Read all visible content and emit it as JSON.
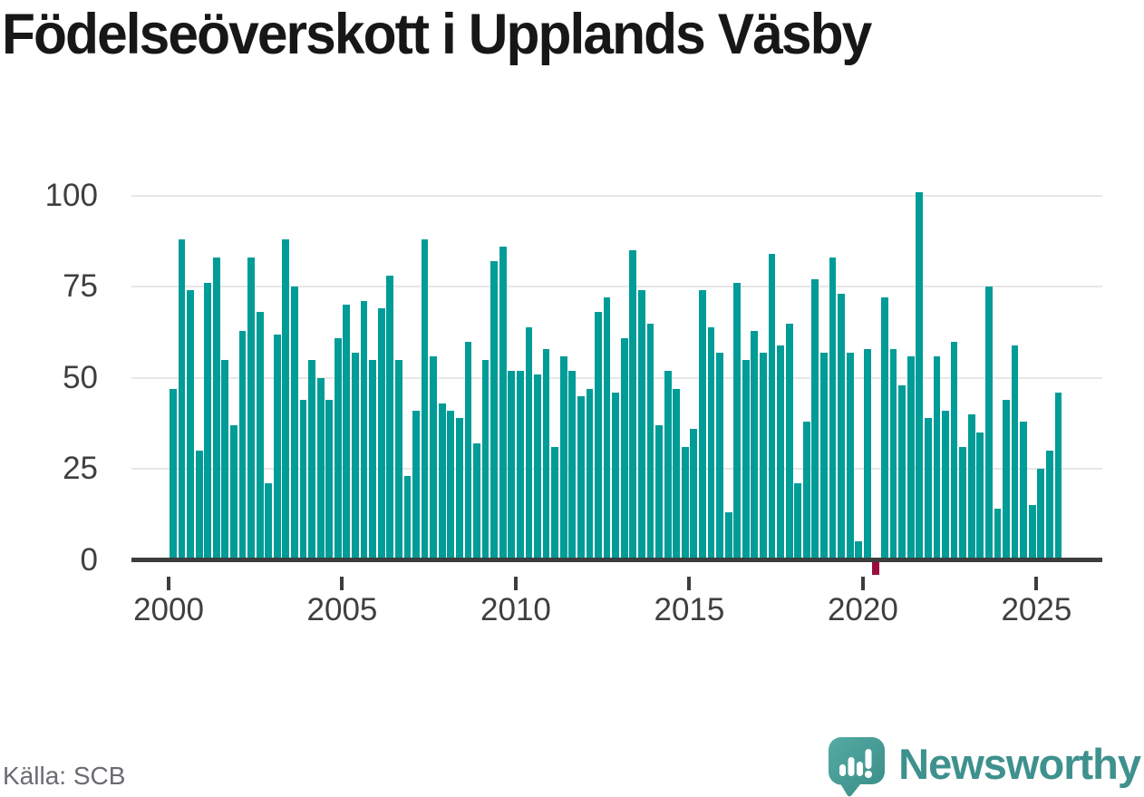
{
  "title": "Födelseöverskott i Upplands Väsby",
  "source": "Källa: SCB",
  "branding": {
    "logo_text": "Newsworthy",
    "logo_icon": "newsworthy-speech-bubble-barchart-icon"
  },
  "colors": {
    "bar_positive": "#009c97",
    "bar_negative": "#9b0d3f",
    "gridline": "#e7e7e7",
    "axis_line": "#3d3d3d",
    "tick_label": "#3f3f3f",
    "title_text": "#171717",
    "source_text": "#6b6b72",
    "brand_teal": "#3e918d",
    "background": "#ffffff"
  },
  "chart_data": {
    "type": "bar",
    "title": "Födelseöverskott i Upplands Väsby",
    "frequency": "quarterly",
    "x_start_year": 2000,
    "x_start_quarter": 1,
    "x_end_year": 2025,
    "x_end_quarter": 3,
    "x_tick_labels": [
      "2000",
      "2005",
      "2010",
      "2015",
      "2020",
      "2025"
    ],
    "y_ticks": [
      0,
      25,
      50,
      75,
      100
    ],
    "ylim": [
      -10,
      105
    ],
    "grid": "horizontal",
    "legend": "none",
    "negative_bars_highlighted": true,
    "values": [
      47,
      88,
      74,
      30,
      76,
      83,
      55,
      37,
      63,
      83,
      68,
      21,
      62,
      88,
      75,
      44,
      55,
      50,
      44,
      61,
      70,
      57,
      71,
      55,
      69,
      78,
      55,
      23,
      41,
      88,
      56,
      43,
      41,
      39,
      60,
      32,
      55,
      82,
      86,
      52,
      52,
      64,
      51,
      58,
      31,
      56,
      52,
      45,
      47,
      68,
      72,
      46,
      61,
      85,
      74,
      65,
      37,
      52,
      47,
      31,
      36,
      74,
      64,
      57,
      13,
      76,
      55,
      63,
      57,
      84,
      59,
      65,
      21,
      38,
      77,
      57,
      83,
      73,
      57,
      5,
      58,
      -4,
      72,
      58,
      48,
      56,
      101,
      39,
      56,
      41,
      60,
      31,
      40,
      35,
      75,
      14,
      44,
      59,
      38,
      15,
      25,
      30,
      46
    ]
  }
}
